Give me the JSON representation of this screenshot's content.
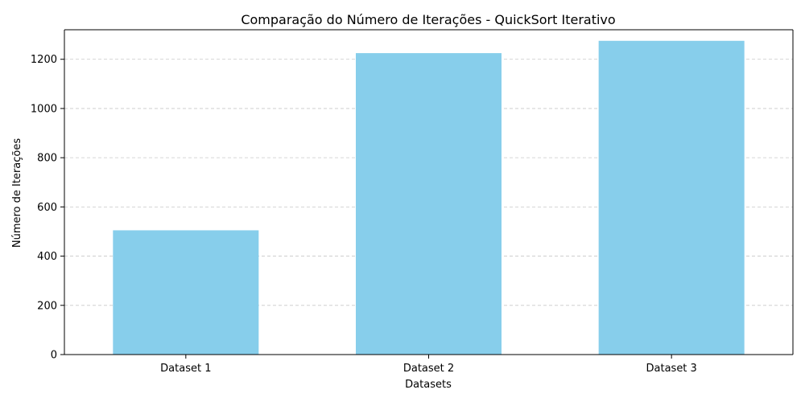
{
  "chart_data": {
    "type": "bar",
    "title": "Comparação do Número de Iterações - QuickSort Iterativo",
    "xlabel": "Datasets",
    "ylabel": "Número de Iterações",
    "categories": [
      "Dataset 1",
      "Dataset 2",
      "Dataset 3"
    ],
    "values": [
      505,
      1225,
      1275
    ],
    "ylim": [
      0,
      1320
    ],
    "yticks": [
      0,
      200,
      400,
      600,
      800,
      1000,
      1200
    ],
    "grid": "y-dashed",
    "bar_color": "#87ceeb"
  }
}
